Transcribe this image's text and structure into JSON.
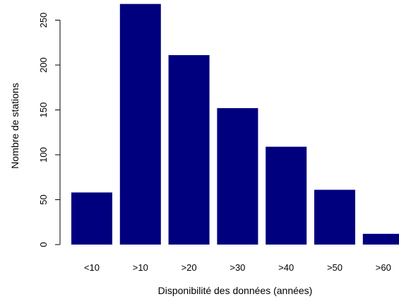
{
  "chart_data": {
    "type": "bar",
    "categories": [
      "<10",
      ">10",
      ">20",
      ">30",
      ">40",
      ">50",
      ">60"
    ],
    "values": [
      58,
      268,
      211,
      152,
      109,
      61,
      12
    ],
    "xlabel": "Disponibilité des données (années)",
    "ylabel": "Nombre de stations",
    "yticks": [
      0,
      50,
      100,
      150,
      200,
      250
    ],
    "ylim": [
      0,
      268
    ],
    "bar_color": "#00007f",
    "grid": false
  }
}
